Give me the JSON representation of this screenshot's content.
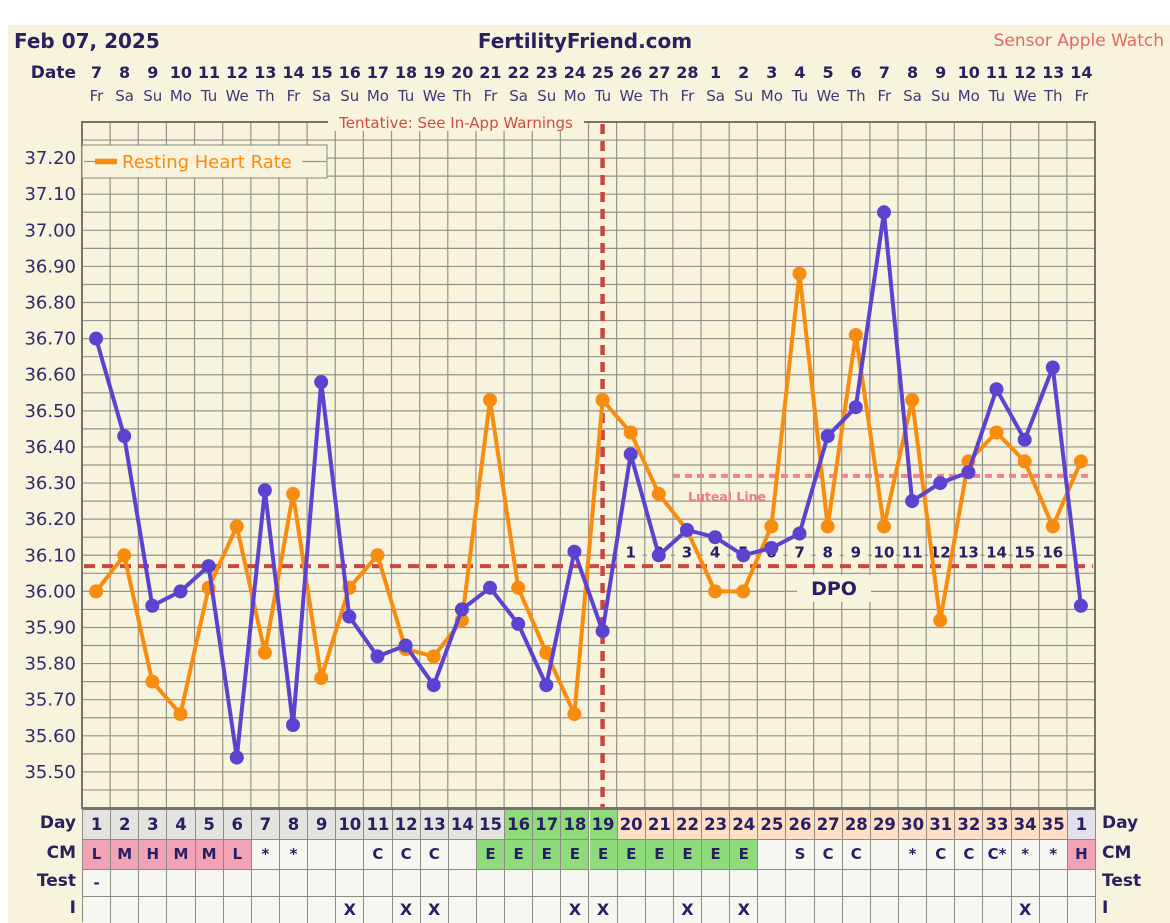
{
  "header": {
    "chart_date": "Feb 07, 2025",
    "site_name": "FertilityFriend.com",
    "sensor": "Sensor Apple Watch"
  },
  "date_axis": {
    "label": "Date",
    "dates": [
      "7",
      "8",
      "9",
      "10",
      "11",
      "12",
      "13",
      "14",
      "15",
      "16",
      "17",
      "18",
      "19",
      "20",
      "21",
      "22",
      "23",
      "24",
      "25",
      "26",
      "27",
      "28",
      "1",
      "2",
      "3",
      "4",
      "5",
      "6",
      "7",
      "8",
      "9",
      "10",
      "11",
      "12",
      "13",
      "14"
    ],
    "weekdays": [
      "Fr",
      "Sa",
      "Su",
      "Mo",
      "Tu",
      "We",
      "Th",
      "Fr",
      "Sa",
      "Su",
      "Mo",
      "Tu",
      "We",
      "Th",
      "Fr",
      "Sa",
      "Su",
      "Mo",
      "Tu",
      "We",
      "Th",
      "Fr",
      "Sa",
      "Su",
      "Mo",
      "Tu",
      "We",
      "Th",
      "Fr",
      "Sa",
      "Su",
      "Mo",
      "Tu",
      "We",
      "Th",
      "Fr"
    ]
  },
  "chart_data": {
    "type": "line",
    "warning": "Tentative: See In-App Warnings",
    "legend": {
      "label": "Resting Heart Rate",
      "position": "top-left"
    },
    "y_ticks": [
      "37.20",
      "37.10",
      "37.00",
      "36.90",
      "36.80",
      "36.70",
      "36.60",
      "36.50",
      "36.40",
      "36.30",
      "36.20",
      "36.10",
      "36.00",
      "35.90",
      "35.80",
      "35.70",
      "35.60",
      "35.50"
    ],
    "ylim": [
      35.4,
      37.3
    ],
    "grid_step": 0.05,
    "x_days": 36,
    "series": [
      {
        "name": "Resting Heart Rate",
        "color": "#f78c0e",
        "values": [
          36.0,
          36.1,
          35.75,
          35.66,
          36.01,
          36.18,
          35.83,
          36.27,
          35.76,
          36.01,
          36.1,
          35.84,
          35.82,
          35.92,
          36.53,
          36.01,
          35.83,
          35.66,
          36.53,
          36.44,
          36.27,
          36.17,
          36.0,
          36.0,
          36.18,
          36.88,
          36.18,
          36.71,
          36.18,
          36.53,
          35.92,
          36.36,
          36.44,
          36.36,
          36.18,
          36.36
        ]
      },
      {
        "name": "Temperature",
        "color": "#5b43cf",
        "values": [
          36.7,
          36.43,
          35.96,
          36.0,
          36.07,
          35.54,
          36.28,
          35.63,
          36.58,
          35.93,
          35.82,
          35.85,
          35.74,
          35.95,
          36.01,
          35.91,
          35.74,
          36.11,
          35.89,
          36.38,
          36.1,
          36.17,
          36.15,
          36.1,
          36.12,
          36.16,
          36.43,
          36.51,
          37.05,
          36.25,
          36.3,
          36.33,
          36.56,
          36.42,
          36.62,
          35.96
        ]
      }
    ],
    "coverline": {
      "value": 36.07,
      "color": "#c9473f",
      "style": "dashed"
    },
    "ovulation_line": {
      "day": 19,
      "color": "#c9473f",
      "style": "dashed"
    },
    "luteal_line": {
      "label": "Luteal Line",
      "value": 36.32,
      "start_day": 22,
      "color": "#f5808e",
      "label_color": "#f1798b",
      "style": "dashed"
    },
    "dpo": {
      "label": "DPO",
      "first_day": 20,
      "numbers": [
        "1",
        "2",
        "3",
        "4",
        "5",
        "6",
        "7",
        "8",
        "9",
        "10",
        "11",
        "12",
        "13",
        "14",
        "15",
        "16"
      ],
      "level": 36.11
    }
  },
  "table": {
    "left_labels": [
      "Day",
      "CM",
      "Test",
      "I"
    ],
    "right_labels": [
      "Day",
      "CM",
      "Test",
      "I"
    ],
    "rows": {
      "day": {
        "values": [
          "1",
          "2",
          "3",
          "4",
          "5",
          "6",
          "7",
          "8",
          "9",
          "10",
          "11",
          "12",
          "13",
          "14",
          "15",
          "16",
          "17",
          "18",
          "19",
          "20",
          "21",
          "22",
          "23",
          "24",
          "25",
          "26",
          "27",
          "28",
          "29",
          "30",
          "31",
          "32",
          "33",
          "34",
          "35",
          "1"
        ],
        "colors": [
          "gray",
          "gray",
          "gray",
          "gray",
          "gray",
          "gray",
          "gray",
          "gray",
          "gray",
          "gray",
          "gray",
          "gray",
          "gray",
          "gray",
          "gray",
          "green",
          "green",
          "green",
          "green",
          "peach",
          "peach",
          "peach",
          "peach",
          "peach",
          "peach",
          "peach",
          "peach",
          "peach",
          "peach",
          "peach",
          "peach",
          "peach",
          "peach",
          "peach",
          "peach",
          "lavender"
        ]
      },
      "cm": {
        "values": [
          "L",
          "M",
          "H",
          "M",
          "M",
          "L",
          "*",
          "*",
          "",
          "",
          "C",
          "C",
          "C",
          "",
          "E",
          "E",
          "E",
          "E",
          "E",
          "E",
          "E",
          "E",
          "E",
          "E",
          "",
          "S",
          "C",
          "C",
          "",
          "*",
          "C",
          "C",
          "C*",
          "*",
          "*",
          "H"
        ],
        "colors": [
          "pink",
          "pink",
          "pink",
          "pink",
          "pink",
          "pink",
          "blank",
          "blank",
          "blank",
          "blank",
          "blank",
          "blank",
          "blank",
          "blank",
          "green",
          "green",
          "green",
          "green",
          "green",
          "green",
          "green",
          "green",
          "green",
          "green",
          "blank",
          "blank",
          "blank",
          "blank",
          "blank",
          "blank",
          "blank",
          "blank",
          "blank",
          "blank",
          "blank",
          "pink"
        ]
      },
      "test": {
        "values": [
          "-",
          "",
          "",
          "",
          "",
          "",
          "",
          "",
          "",
          "",
          "",
          "",
          "",
          "",
          "",
          "",
          "",
          "",
          "",
          "",
          "",
          "",
          "",
          "",
          "",
          "",
          "",
          "",
          "",
          "",
          "",
          "",
          "",
          "",
          "",
          ""
        ]
      },
      "i": {
        "values": [
          "",
          "",
          "",
          "",
          "",
          "",
          "",
          "",
          "",
          "X",
          "",
          "X",
          "X",
          "",
          "",
          "",
          "",
          "X",
          "X",
          "",
          "",
          "X",
          "",
          "X",
          "",
          "",
          "",
          "",
          "",
          "",
          "",
          "",
          "",
          "X",
          "",
          ""
        ]
      }
    }
  },
  "palette": {
    "gray": "#e4e3df",
    "green": "#8fdb7b",
    "peach": "#fcdfc4",
    "pink": "#f2a2b5",
    "lavender": "#e2e0ec",
    "blank": "#f7f7f1",
    "navy": "#271f63",
    "cream": "#f7f3dd",
    "grid": "#95938b",
    "border": "#75736b",
    "warning_red": "#d14b42"
  }
}
